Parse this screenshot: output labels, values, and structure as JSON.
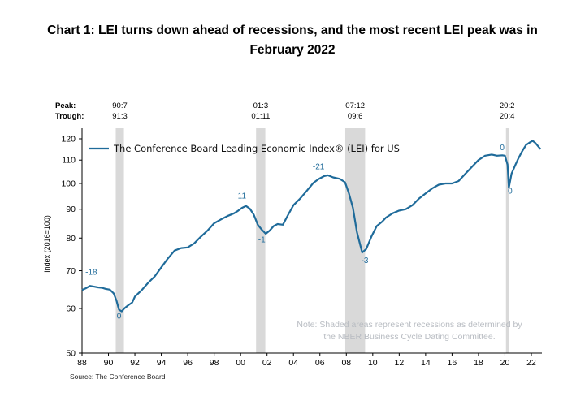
{
  "page": {
    "title_line1": "Chart 1: LEI turns down ahead of recessions, and the most recent LEI peak was in",
    "title_line2": "February 2022",
    "source": "Source: The Conference Board"
  },
  "chart_data": {
    "type": "line",
    "title": "Chart 1: LEI turns down ahead of recessions, and the most recent LEI peak was in February 2022",
    "ylabel": "Index (2016=100)",
    "xlabel": "",
    "y_scale": "log",
    "ylim": [
      50,
      122
    ],
    "xlim": [
      1988.0,
      2022.8
    ],
    "y_ticks": [
      50,
      60,
      70,
      80,
      90,
      100,
      110,
      120
    ],
    "x_ticks": [
      {
        "value": 1988,
        "label": "88"
      },
      {
        "value": 1990,
        "label": "90"
      },
      {
        "value": 1992,
        "label": "92"
      },
      {
        "value": 1994,
        "label": "94"
      },
      {
        "value": 1996,
        "label": "96"
      },
      {
        "value": 1998,
        "label": "98"
      },
      {
        "value": 2000,
        "label": "00"
      },
      {
        "value": 2002,
        "label": "02"
      },
      {
        "value": 2004,
        "label": "04"
      },
      {
        "value": 2006,
        "label": "06"
      },
      {
        "value": 2008,
        "label": "08"
      },
      {
        "value": 2010,
        "label": "10"
      },
      {
        "value": 2012,
        "label": "12"
      },
      {
        "value": 2014,
        "label": "14"
      },
      {
        "value": 2016,
        "label": "16"
      },
      {
        "value": 2018,
        "label": "18"
      },
      {
        "value": 2020,
        "label": "20"
      },
      {
        "value": 2022,
        "label": "22"
      }
    ],
    "grid": false,
    "legend_position": "top-left",
    "series": [
      {
        "name": "The Conference Board Leading Economic Index® (LEI) for US",
        "color": "#1f6b9a",
        "x": [
          1988.0,
          1988.3,
          1988.6,
          1988.9,
          1989.2,
          1989.5,
          1989.8,
          1990.1,
          1990.4,
          1990.6,
          1990.8,
          1991.0,
          1991.2,
          1991.5,
          1991.8,
          1992.0,
          1992.5,
          1993.0,
          1993.5,
          1994.0,
          1994.5,
          1995.0,
          1995.5,
          1996.0,
          1996.5,
          1997.0,
          1997.5,
          1998.0,
          1998.5,
          1999.0,
          1999.5,
          1999.8,
          2000.1,
          2000.4,
          2000.7,
          2001.0,
          2001.3,
          2001.6,
          2001.9,
          2002.2,
          2002.5,
          2002.8,
          2003.2,
          2003.6,
          2004.0,
          2004.5,
          2005.0,
          2005.5,
          2005.9,
          2006.3,
          2006.6,
          2007.0,
          2007.5,
          2007.9,
          2008.2,
          2008.5,
          2008.8,
          2009.2,
          2009.5,
          2009.9,
          2010.3,
          2010.7,
          2011.0,
          2011.5,
          2012.0,
          2012.5,
          2013.0,
          2013.5,
          2014.0,
          2014.5,
          2015.0,
          2015.5,
          2016.0,
          2016.5,
          2017.0,
          2017.5,
          2018.0,
          2018.5,
          2019.0,
          2019.4,
          2019.8,
          2020.0,
          2020.2,
          2020.3,
          2020.5,
          2020.8,
          2021.0,
          2021.3,
          2021.6,
          2021.9,
          2022.1,
          2022.3,
          2022.5,
          2022.7
        ],
        "y": [
          64.7,
          65.2,
          65.8,
          65.6,
          65.4,
          65.3,
          65.0,
          64.8,
          63.8,
          62.0,
          59.7,
          59.3,
          60.0,
          60.8,
          61.5,
          63.0,
          64.6,
          66.6,
          68.4,
          71.0,
          73.6,
          76.0,
          76.8,
          77.0,
          78.3,
          80.5,
          82.5,
          85.0,
          86.3,
          87.5,
          88.5,
          89.4,
          90.5,
          91.2,
          90.2,
          88.0,
          84.5,
          82.8,
          81.4,
          82.5,
          84.0,
          84.7,
          84.5,
          88.0,
          91.5,
          94.0,
          97.0,
          100.2,
          101.8,
          103.0,
          103.4,
          102.5,
          101.9,
          100.5,
          96.0,
          90.5,
          82.0,
          75.4,
          76.5,
          80.5,
          84.0,
          85.5,
          87.0,
          88.5,
          89.5,
          90.0,
          91.5,
          94.0,
          96.0,
          98.0,
          99.5,
          100.0,
          100.0,
          101.0,
          104.0,
          107.0,
          110.0,
          112.0,
          112.5,
          112.0,
          112.2,
          112.0,
          108.0,
          98.2,
          104.0,
          108.0,
          110.5,
          114.0,
          117.0,
          118.3,
          119.0,
          118.0,
          116.5,
          115.0
        ]
      }
    ],
    "recessions": [
      {
        "start": 1990.55,
        "end": 1991.17,
        "peak": "90:7",
        "trough": "91:3"
      },
      {
        "start": 2001.17,
        "end": 2001.87,
        "peak": "01:3",
        "trough": "01:11"
      },
      {
        "start": 2007.92,
        "end": 2009.42,
        "peak": "07:12",
        "trough": "09:6"
      },
      {
        "start": 2020.08,
        "end": 2020.25,
        "peak": "20:2",
        "trough": "20:4"
      }
    ],
    "peak_row_label": "Peak:",
    "trough_row_label": "Trough:",
    "annotations": [
      {
        "text": "-18",
        "x": 1988.7,
        "y": 68.8,
        "color": "#1f6b9a"
      },
      {
        "text": "0",
        "x": 1990.8,
        "y": 57.6,
        "color": "#1f6b9a"
      },
      {
        "text": "-11",
        "x": 2000.0,
        "y": 94.0,
        "color": "#1f6b9a"
      },
      {
        "text": "-1",
        "x": 2001.6,
        "y": 78.6,
        "color": "#1f6b9a"
      },
      {
        "text": "-21",
        "x": 2005.9,
        "y": 106.0,
        "color": "#1f6b9a"
      },
      {
        "text": "-3",
        "x": 2009.4,
        "y": 72.2,
        "color": "#1f6b9a"
      },
      {
        "text": "0",
        "x": 2019.8,
        "y": 114.6,
        "color": "#1f6b9a"
      },
      {
        "text": "0",
        "x": 2020.4,
        "y": 96.0,
        "color": "#1f6b9a"
      }
    ],
    "note_lines": [
      "Note: Shaded areas represent recessions as determined by",
      "the NBER Business Cycle Dating Committee."
    ]
  }
}
